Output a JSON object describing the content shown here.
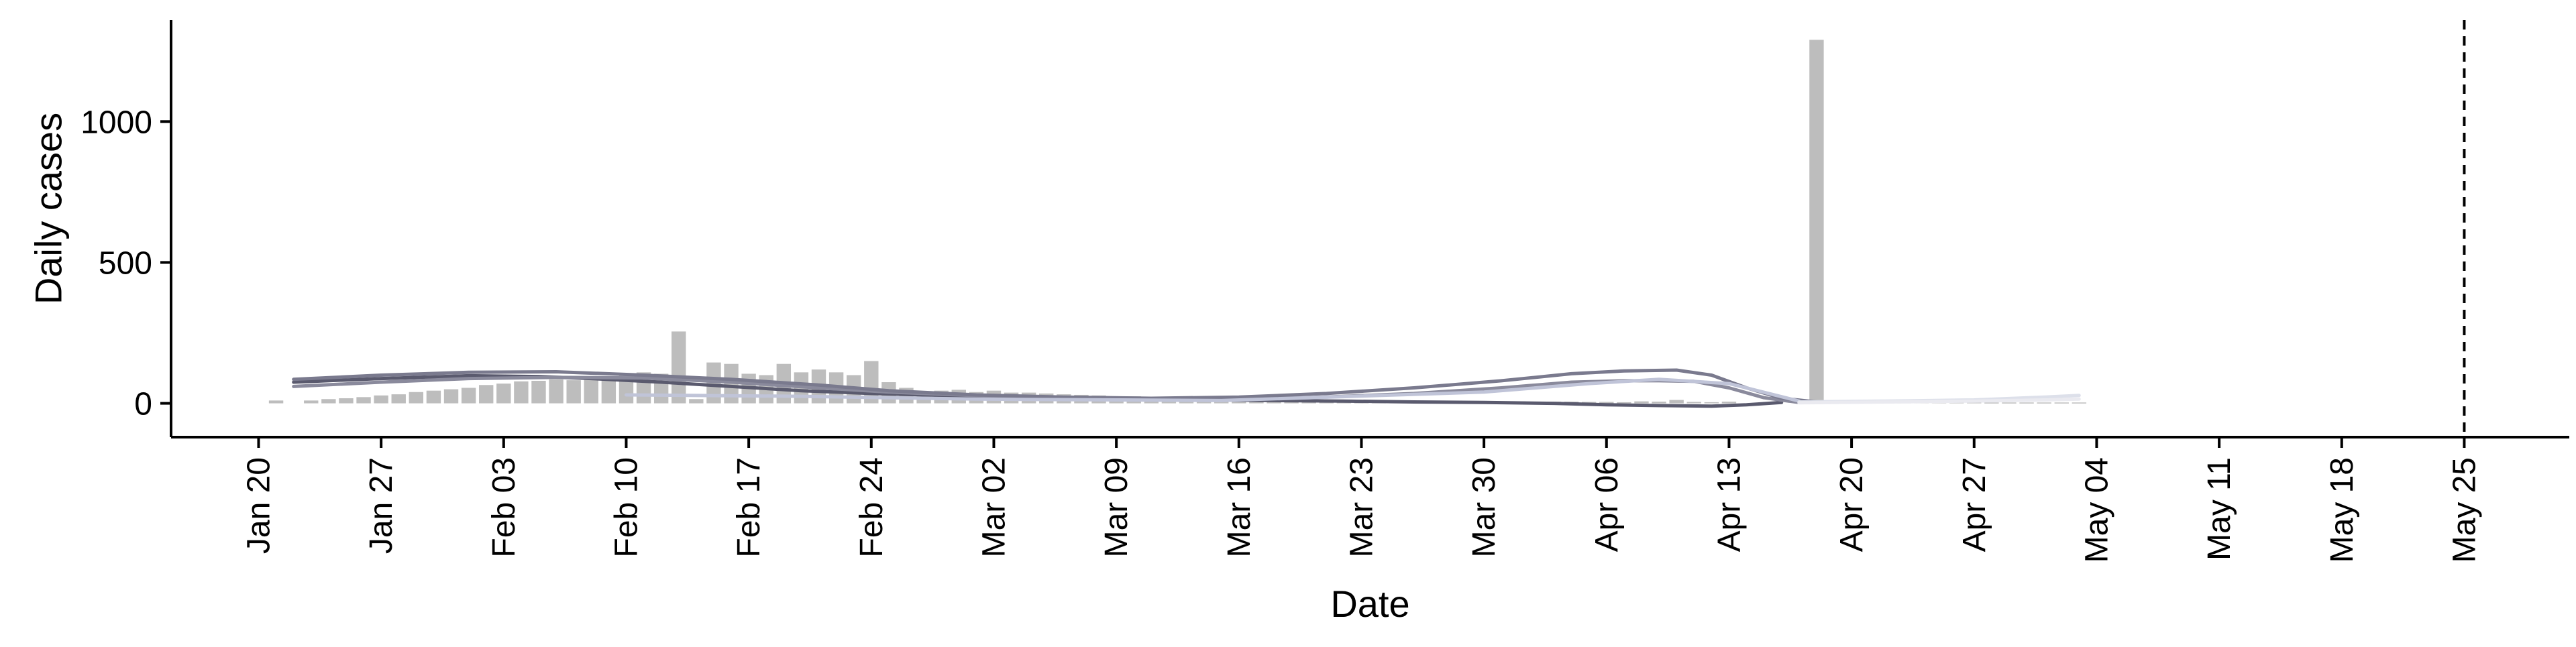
{
  "chart_data": {
    "type": "bar",
    "title": "",
    "xlabel": "Date",
    "ylabel": "Daily cases",
    "ylim": [
      -120,
      1360
    ],
    "y_ticks": [
      0,
      500,
      1000
    ],
    "y_tick_labels": [
      "0",
      "500",
      "1000"
    ],
    "x_domain": [
      "2020-01-15",
      "2020-05-31"
    ],
    "x_ticks": [
      "2020-01-20",
      "2020-01-27",
      "2020-02-03",
      "2020-02-10",
      "2020-02-17",
      "2020-02-24",
      "2020-03-02",
      "2020-03-09",
      "2020-03-16",
      "2020-03-23",
      "2020-03-30",
      "2020-04-06",
      "2020-04-13",
      "2020-04-20",
      "2020-04-27",
      "2020-05-04",
      "2020-05-11",
      "2020-05-18",
      "2020-05-25"
    ],
    "x_tick_labels": [
      "Jan 20",
      "Jan 27",
      "Feb 03",
      "Feb 10",
      "Feb 17",
      "Feb 24",
      "Mar 02",
      "Mar 09",
      "Mar 16",
      "Mar 23",
      "Mar 30",
      "Apr 06",
      "Apr 13",
      "Apr 20",
      "Apr 27",
      "May 04",
      "May 11",
      "May 18",
      "May 25"
    ],
    "vline_date": "2020-05-25",
    "grid": false,
    "bar_color": "#bdbdbd",
    "bars": {
      "start_date": "2020-01-21",
      "values": [
        10,
        0,
        10,
        15,
        18,
        22,
        28,
        32,
        40,
        45,
        50,
        55,
        65,
        70,
        78,
        80,
        85,
        82,
        90,
        95,
        100,
        110,
        105,
        255,
        15,
        145,
        140,
        105,
        100,
        140,
        110,
        120,
        110,
        100,
        150,
        75,
        55,
        35,
        45,
        48,
        40,
        45,
        38,
        38,
        35,
        32,
        30,
        28,
        25,
        25,
        22,
        20,
        18,
        18,
        15,
        15,
        14,
        14,
        12,
        12,
        12,
        12,
        10,
        10,
        10,
        9,
        8,
        8,
        8,
        8,
        7,
        7,
        6,
        6,
        6,
        5,
        5,
        4,
        7,
        6,
        12,
        5,
        4,
        6,
        0,
        0,
        0,
        0,
        1290,
        5,
        5,
        6,
        5,
        5,
        5,
        4,
        4,
        4,
        3,
        3,
        3,
        3,
        3,
        3
      ]
    },
    "series": [
      {
        "color": "#5a5a6e",
        "x": [
          "2020-01-22",
          "2020-01-27",
          "2020-02-01",
          "2020-02-05",
          "2020-02-08",
          "2020-02-12",
          "2020-02-16",
          "2020-02-20",
          "2020-02-24",
          "2020-02-28",
          "2020-03-02",
          "2020-03-06",
          "2020-03-10",
          "2020-03-14",
          "2020-03-18",
          "2020-03-22",
          "2020-03-26",
          "2020-03-30",
          "2020-04-03",
          "2020-04-06",
          "2020-04-09",
          "2020-04-12",
          "2020-04-14",
          "2020-04-16"
        ],
        "values": [
          75,
          88,
          98,
          95,
          88,
          75,
          60,
          45,
          35,
          28,
          25,
          20,
          15,
          12,
          10,
          8,
          5,
          3,
          0,
          -5,
          -8,
          -10,
          -5,
          3
        ]
      },
      {
        "color": "#8a8a9c",
        "x": [
          "2020-01-22",
          "2020-01-27",
          "2020-02-01",
          "2020-02-06",
          "2020-02-11",
          "2020-02-16",
          "2020-02-21",
          "2020-02-25",
          "2020-03-02",
          "2020-03-08",
          "2020-03-14",
          "2020-03-20",
          "2020-03-26",
          "2020-03-31",
          "2020-04-04",
          "2020-04-07",
          "2020-04-09",
          "2020-04-11",
          "2020-04-13",
          "2020-04-15",
          "2020-04-17"
        ],
        "values": [
          60,
          75,
          88,
          92,
          90,
          75,
          55,
          40,
          25,
          15,
          15,
          20,
          35,
          55,
          75,
          80,
          80,
          78,
          55,
          20,
          3
        ]
      },
      {
        "color": "#7a7a8e",
        "x": [
          "2020-01-22",
          "2020-01-27",
          "2020-02-01",
          "2020-02-06",
          "2020-02-11",
          "2020-02-16",
          "2020-02-21",
          "2020-02-25",
          "2020-03-01",
          "2020-03-06",
          "2020-03-11",
          "2020-03-16",
          "2020-03-21",
          "2020-03-26",
          "2020-03-31",
          "2020-04-04",
          "2020-04-07",
          "2020-04-10",
          "2020-04-12",
          "2020-04-14",
          "2020-04-16",
          "2020-04-18"
        ],
        "values": [
          85,
          100,
          110,
          112,
          100,
          85,
          65,
          45,
          30,
          22,
          18,
          22,
          35,
          55,
          80,
          105,
          115,
          118,
          100,
          55,
          18,
          5
        ]
      },
      {
        "color": "#c0c4d8",
        "x": [
          "2020-02-10",
          "2020-02-20",
          "2020-03-01",
          "2020-03-15",
          "2020-03-30",
          "2020-04-05",
          "2020-04-09",
          "2020-04-13",
          "2020-04-17"
        ],
        "values": [
          30,
          25,
          15,
          10,
          40,
          70,
          85,
          70,
          8
        ]
      },
      {
        "color": "#dde0ea",
        "x": [
          "2020-04-17",
          "2020-04-22",
          "2020-04-27",
          "2020-05-01",
          "2020-05-03"
        ],
        "values": [
          5,
          8,
          12,
          22,
          28
        ]
      },
      {
        "color": "#eaeaf0",
        "x": [
          "2020-04-17",
          "2020-04-22",
          "2020-04-27",
          "2020-05-01",
          "2020-05-03"
        ],
        "values": [
          2,
          5,
          8,
          12,
          15
        ]
      }
    ]
  }
}
